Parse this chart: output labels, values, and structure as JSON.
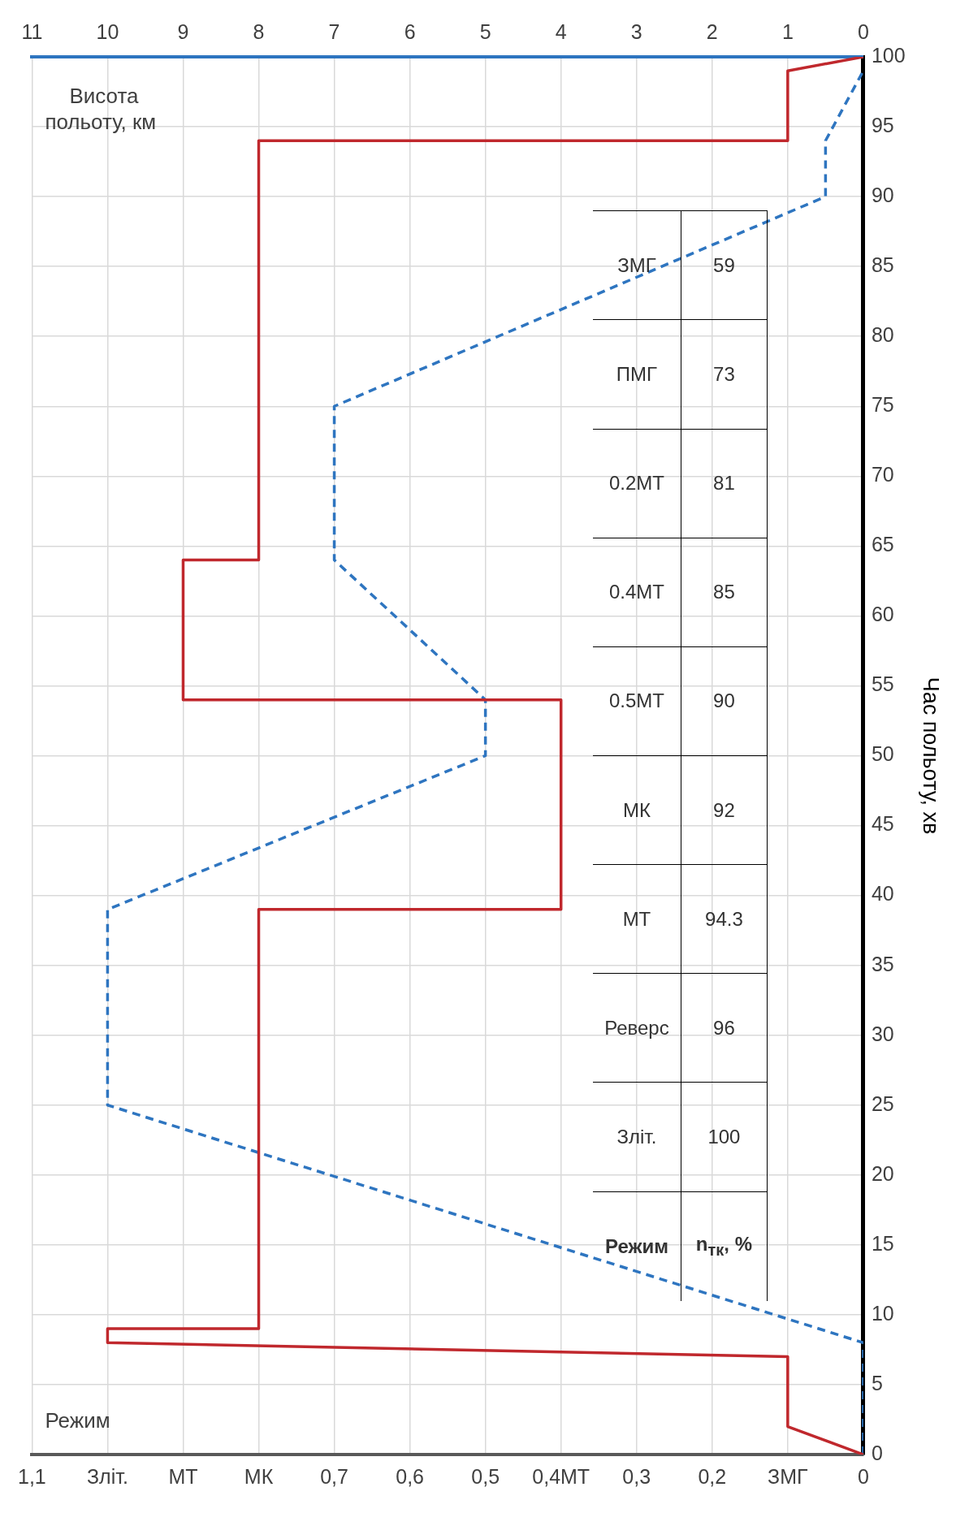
{
  "chart_data": {
    "type": "line",
    "xlabel": "Режим",
    "ylabel": "Час польоту, хв",
    "x2label": "Висота польоту, км",
    "xlim": [
      1.1,
      0
    ],
    "xticks": [
      {
        "value": 1.1,
        "label": "1,1"
      },
      {
        "value": 1.0,
        "label": "Зліт."
      },
      {
        "value": 0.9,
        "label": "МТ"
      },
      {
        "value": 0.8,
        "label": "МК"
      },
      {
        "value": 0.7,
        "label": "0,7"
      },
      {
        "value": 0.6,
        "label": "0,6"
      },
      {
        "value": 0.5,
        "label": "0,5"
      },
      {
        "value": 0.4,
        "label": "0,4МТ"
      },
      {
        "value": 0.3,
        "label": "0,3"
      },
      {
        "value": 0.2,
        "label": "0,2"
      },
      {
        "value": 0.1,
        "label": "ЗМГ"
      },
      0
    ],
    "x2lim": [
      11,
      0
    ],
    "x2ticks": [
      11,
      10,
      9,
      8,
      7,
      6,
      5,
      4,
      3,
      2,
      1,
      0
    ],
    "ylim": [
      0,
      100
    ],
    "yticks": [
      0,
      5,
      10,
      15,
      20,
      25,
      30,
      35,
      40,
      45,
      50,
      55,
      60,
      65,
      70,
      75,
      80,
      85,
      90,
      95,
      100
    ],
    "grid": true,
    "series": [
      {
        "type": "line",
        "color": "#c0282d",
        "line_style": "solid",
        "x": [
          0,
          0.1,
          0.1,
          1.0,
          1.0,
          0.8,
          0.8,
          0.4,
          0.4,
          0.9,
          0.9,
          0.8,
          0.8,
          0.1,
          0.1,
          0
        ],
        "values": [
          0,
          2,
          7,
          8,
          9,
          9,
          39,
          39,
          54,
          54,
          64,
          64,
          94,
          94,
          99,
          100
        ]
      },
      {
        "type": "line",
        "color": "#2e75c0",
        "line_style": "dashed",
        "axis": "x2",
        "x": [
          0,
          0,
          10,
          10,
          5,
          5,
          7,
          7,
          0.5,
          0.5,
          0
        ],
        "values": [
          0,
          8,
          25,
          39,
          50,
          54,
          64,
          75,
          90,
          94,
          99
        ]
      }
    ],
    "annotations": [
      "Режим",
      "Зліт.",
      "Реверс",
      "МТ",
      "МК",
      "0.5МТ",
      "0.4МТ",
      "0.2МТ",
      "ПМГ",
      "ЗМГ",
      "n$_{тк}$, %",
      "100",
      "96",
      "94.3",
      "92",
      "90",
      "85",
      "81",
      "73",
      "59"
    ]
  }
}
